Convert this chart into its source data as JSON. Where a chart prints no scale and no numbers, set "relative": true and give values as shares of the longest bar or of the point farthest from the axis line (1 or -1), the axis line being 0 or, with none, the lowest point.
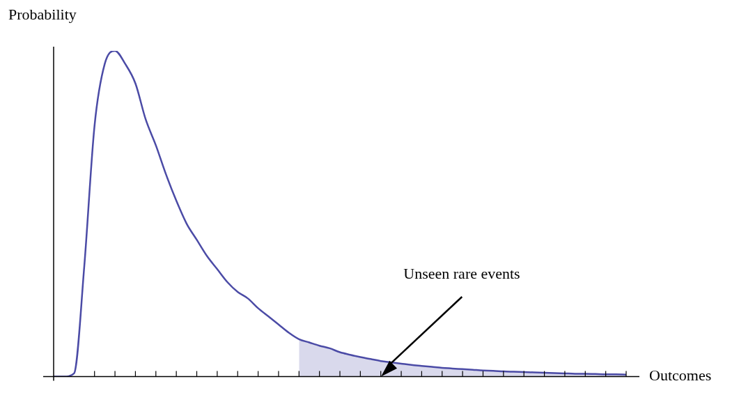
{
  "chart_data": {
    "type": "line",
    "xlabel": "Outcomes",
    "ylabel": "Probability",
    "annotations": [
      "Unseen rare events"
    ],
    "relative": true,
    "categories": [
      null,
      null,
      null,
      null,
      null,
      null,
      null,
      null,
      null,
      null,
      null,
      null,
      null,
      null,
      null,
      null,
      null,
      null,
      null,
      null,
      null,
      null,
      null,
      null,
      null,
      null,
      null,
      null,
      null,
      null,
      null,
      null,
      null,
      null,
      null,
      null,
      null,
      null,
      null,
      null,
      null,
      null,
      null,
      null,
      null,
      null,
      null,
      null,
      null,
      null,
      null,
      null,
      null,
      null,
      null,
      null,
      null
    ],
    "series": [
      {
        "type": "line",
        "color": "#4b4ba6",
        "values": [
          0,
          0,
          0.01,
          0.34,
          0.77,
          0.96,
          1,
          0.96,
          0.9,
          0.79,
          0.71,
          0.62,
          0.54,
          0.47,
          0.42,
          0.37,
          0.33,
          0.29,
          0.26,
          0.24,
          0.21,
          0.185,
          0.16,
          0.135,
          0.115,
          0.105,
          0.095,
          0.087,
          0.075,
          0.067,
          0.06,
          0.054,
          0.048,
          0.044,
          0.04,
          0.036,
          0.033,
          0.03,
          0.027,
          0.025,
          0.023,
          0.021,
          0.019,
          0.018,
          0.016,
          0.015,
          0.014,
          0.013,
          0.012,
          0.011,
          0.01,
          0.009,
          0.009,
          0.008,
          0.007,
          0.007,
          0.006
        ]
      },
      {
        "type": "area",
        "color": "#d9d9ec",
        "values": [
          null,
          null,
          null,
          null,
          null,
          null,
          null,
          null,
          null,
          null,
          null,
          null,
          null,
          null,
          null,
          null,
          null,
          null,
          null,
          null,
          null,
          null,
          null,
          null,
          0.115,
          0.105,
          0.095,
          0.087,
          0.075,
          0.067,
          0.06,
          0.054,
          0.048,
          0.044,
          0.04,
          0.036,
          0.033,
          0.03,
          0.027,
          0.025,
          0.023,
          0.021,
          0.019,
          0.018,
          0.016,
          0.015,
          0.014,
          0.013,
          0.012,
          0.011,
          0.01,
          0.009,
          0.009,
          0.008,
          0.007,
          0.007,
          0.006
        ]
      }
    ]
  }
}
